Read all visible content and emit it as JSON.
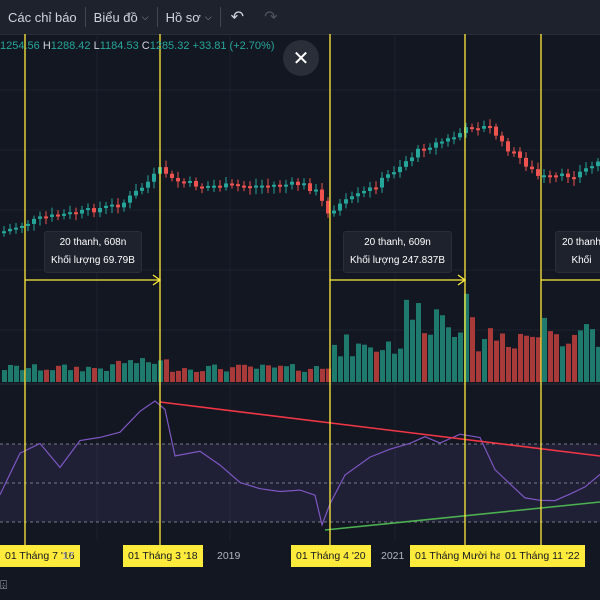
{
  "toolbar": {
    "indicators_label": "Các chỉ báo",
    "chart_label": "Biểu đồ",
    "profile_label": "Hồ sơ"
  },
  "ohlc": {
    "o": "1254.56",
    "h_label": "H",
    "h": "1288.42",
    "l_label": "L",
    "l": "1184.53",
    "c_label": "C",
    "c": "1285.32",
    "change": "+33.81 (+2.70%)"
  },
  "measurements": [
    {
      "line1": "20 thanh, 608n",
      "line2": "Khối lượng 69.79B"
    },
    {
      "line1": "20 thanh, 609n",
      "line2": "Khối lượng 247.837B"
    },
    {
      "line1": "20 thanh",
      "line2": "Khối"
    }
  ],
  "xaxis": {
    "d1": "01 Tháng 7 '16",
    "y2017": "17",
    "d2": "01 Tháng 3 '18",
    "y2019": "2019",
    "d3": "01 Tháng 4 '20",
    "y2021": "2021",
    "d4": "01 Tháng Mười hai",
    "d5": "01 Tháng 11 '22"
  },
  "colors": {
    "up": "#26a69a",
    "down": "#ef5350",
    "vline": "#ffeb3b",
    "rsi": "#7e57c2",
    "resistance": "#f23645",
    "support": "#4caf50"
  },
  "icons": [
    "chevron-down-icon",
    "undo-icon",
    "redo-icon",
    "close-icon",
    "bottom-tool-icon"
  ]
}
